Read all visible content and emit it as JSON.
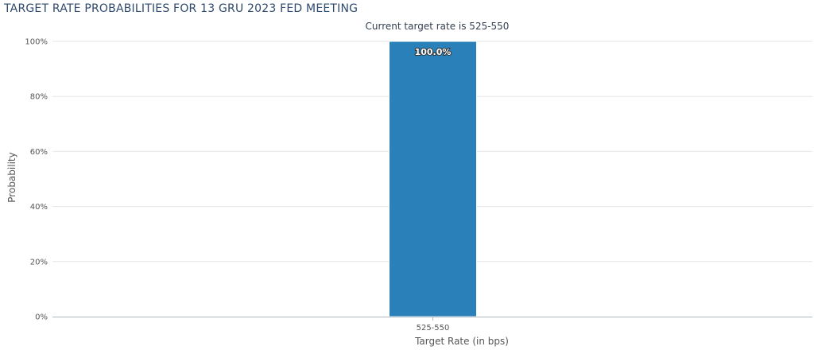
{
  "page": {
    "title": "TARGET RATE PROBABILITIES FOR 13 GRU 2023 FED MEETING"
  },
  "colors": {
    "bar": "#2a80b9",
    "bar_border": "#ffffff",
    "grid": "#e6e6e6",
    "axis": "#b0b8c4",
    "title": "#2f4a6d"
  },
  "chart_data": {
    "type": "bar",
    "title": "TARGET RATE PROBABILITIES FOR 13 GRU 2023 FED MEETING",
    "subtitle": "Current target rate is 525-550",
    "categories": [
      "525-550"
    ],
    "values": [
      100.0
    ],
    "data_labels": [
      "100.0%"
    ],
    "xlabel": "Target Rate (in bps)",
    "ylabel": "Probability",
    "ylim": [
      0,
      100
    ],
    "yticks": [
      0,
      20,
      40,
      60,
      80,
      100
    ],
    "ytick_labels": [
      "0%",
      "20%",
      "40%",
      "60%",
      "80%",
      "100%"
    ],
    "grid": true,
    "legend": "none"
  }
}
